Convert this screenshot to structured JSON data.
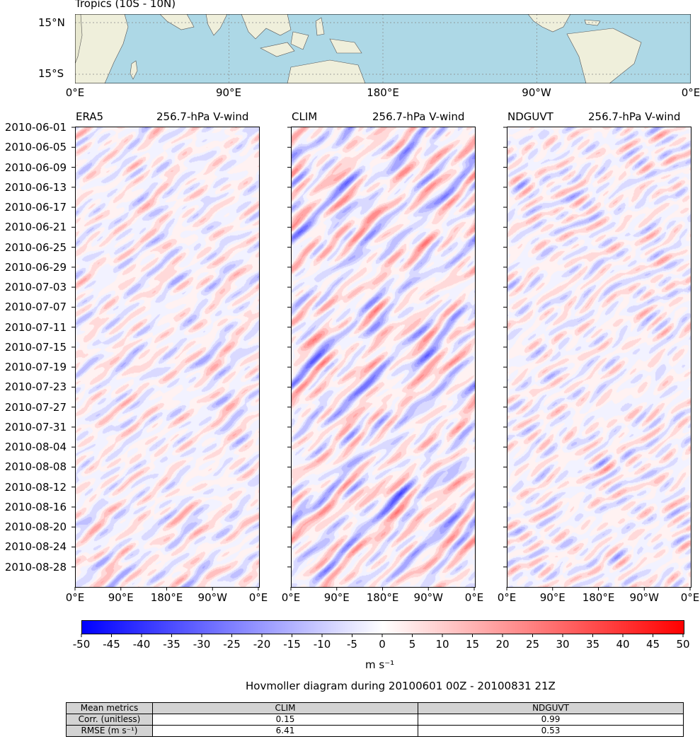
{
  "map": {
    "title": "Tropics (10S - 10N)",
    "lat_labels": [
      "15°N",
      "15°S"
    ],
    "lon_labels": [
      "0°E",
      "90°E",
      "180°E",
      "90°W",
      "0°E"
    ],
    "ocean_color": "#add8e6",
    "land_color": "#efefdb"
  },
  "panels": [
    {
      "model": "ERA5",
      "field": "256.7-hPa V-wind"
    },
    {
      "model": "CLIM",
      "field": "256.7-hPa V-wind"
    },
    {
      "model": "NDGUVT",
      "field": "256.7-hPa V-wind"
    }
  ],
  "chart_data": {
    "type": "heatmap",
    "title": "Hovmoller diagram during 20100601 00Z - 20100831 21Z",
    "variable": "256.7-hPa V-wind",
    "x_tick_labels": [
      "0°E",
      "90°E",
      "180°E",
      "90°W",
      "0°E"
    ],
    "y_tick_labels": [
      "2010-06-01",
      "2010-06-05",
      "2010-06-09",
      "2010-06-13",
      "2010-06-17",
      "2010-06-21",
      "2010-06-25",
      "2010-06-29",
      "2010-07-03",
      "2010-07-07",
      "2010-07-11",
      "2010-07-15",
      "2010-07-19",
      "2010-07-23",
      "2010-07-27",
      "2010-07-31",
      "2010-08-04",
      "2010-08-08",
      "2010-08-12",
      "2010-08-16",
      "2010-08-20",
      "2010-08-24",
      "2010-08-28"
    ],
    "y_range": [
      "2010-06-01",
      "2010-08-31"
    ],
    "x_range": [
      0,
      360
    ],
    "colorbar": {
      "min": -50,
      "max": 50,
      "ticks": [
        "-50",
        "-45",
        "-40",
        "-35",
        "-30",
        "-25",
        "-20",
        "-15",
        "-10",
        "-5",
        "0",
        "5",
        "10",
        "15",
        "20",
        "25",
        "30",
        "35",
        "40",
        "45",
        "50"
      ],
      "label": "m s⁻¹",
      "colormap": "bwr",
      "low_color": "#0000ff",
      "mid_color": "#ffffff",
      "high_color": "#ff0000"
    },
    "panels": [
      {
        "name": "ERA5",
        "amplitude": 14,
        "seed": 1
      },
      {
        "name": "CLIM",
        "amplitude": 22,
        "seed": 2
      },
      {
        "name": "NDGUVT",
        "amplitude": 14,
        "seed": 3
      }
    ]
  },
  "metrics": {
    "header": [
      "Mean metrics",
      "CLIM",
      "NDGUVT"
    ],
    "rows": [
      {
        "label": "Corr. (unitless)",
        "values": [
          "0.15",
          "0.99"
        ]
      },
      {
        "label": "RMSE (m s⁻¹)",
        "values": [
          "6.41",
          "0.53"
        ]
      }
    ]
  }
}
